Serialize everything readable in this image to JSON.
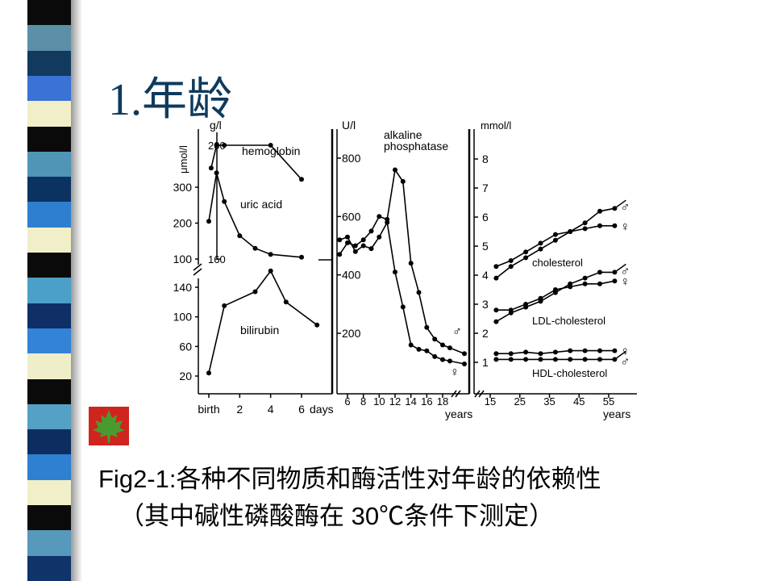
{
  "slide": {
    "title": "1.年龄",
    "caption_line1": "Fig2-1:各种不同物质和酶活性对年龄的依赖性",
    "caption_line2": "（其中碱性磷酸酶在 30℃条件下测定）",
    "decoration_icon": "maple-leaf-icon"
  },
  "colors": {
    "title": "#0f3a5c",
    "stripes": [
      "#0a0a0a",
      "#5b8fa8",
      "#113a5e",
      "#3a72d6",
      "#f1efc8",
      "#0a0a0a",
      "#4f95b6",
      "#0c3262",
      "#2f7fd0",
      "#f1efc8",
      "#0a0a0a",
      "#4aa0c8",
      "#102f66",
      "#3383d8",
      "#f0eec8",
      "#0a0a0a",
      "#55a0c6",
      "#0d2d60",
      "#2e80d0",
      "#f1efc8",
      "#0a0a0a",
      "#5699bb",
      "#10336a"
    ],
    "leaf_bg": "#d0241e",
    "leaf": "#4a9b2f"
  },
  "chart_data": [
    {
      "type": "line",
      "panel": "left",
      "x_ticks": [
        "birth",
        "2",
        "4",
        "6"
      ],
      "x_unit": "days",
      "left_axis_label": "μmol/l",
      "left_ticks_top": [
        "100",
        "200",
        "300"
      ],
      "left_ticks_bottom": [
        "20",
        "60",
        "100",
        "140"
      ],
      "right_axis_label": "g/l",
      "right_ticks": [
        "160",
        "200"
      ],
      "series": [
        {
          "name": "hemoglobin",
          "axis": "g/l",
          "x": [
            0.15,
            0.5,
            1,
            4,
            6
          ],
          "y": [
            192,
            200,
            200,
            200,
            188
          ]
        },
        {
          "name": "uric acid",
          "axis": "μmol/l",
          "x": [
            0,
            0.5,
            1,
            2,
            3,
            4,
            6
          ],
          "y": [
            205,
            340,
            260,
            165,
            130,
            113,
            105
          ]
        },
        {
          "name": "bilirubin",
          "axis": "μmol/l",
          "x": [
            0,
            1,
            3,
            4,
            5,
            7
          ],
          "y": [
            24,
            115,
            134,
            162,
            120,
            89
          ]
        }
      ]
    },
    {
      "type": "line",
      "panel": "middle",
      "axis_label": "U/l",
      "y_ticks": [
        "200",
        "400",
        "600",
        "800"
      ],
      "x_ticks": [
        "6",
        "8",
        "10",
        "12",
        "14",
        "16",
        "18"
      ],
      "x_unit": "years",
      "title": "alkaline phosphatase",
      "series": [
        {
          "name": "♂",
          "x": [
            5,
            6,
            7,
            8,
            9,
            10,
            11,
            12,
            13,
            14,
            15,
            16,
            17,
            18,
            19,
            21
          ],
          "y": [
            470,
            510,
            500,
            520,
            550,
            600,
            590,
            760,
            720,
            440,
            340,
            220,
            180,
            160,
            150,
            130
          ]
        },
        {
          "name": "♀",
          "x": [
            5,
            6,
            7,
            8,
            9,
            10,
            11,
            12,
            13,
            14,
            15,
            16,
            17,
            18,
            19,
            21
          ],
          "y": [
            520,
            530,
            480,
            500,
            490,
            530,
            580,
            410,
            290,
            160,
            145,
            140,
            120,
            110,
            105,
            95
          ]
        }
      ]
    },
    {
      "type": "line",
      "panel": "right",
      "axis_label": "mmol/l",
      "y_ticks": [
        "1",
        "2",
        "3",
        "4",
        "5",
        "6",
        "7",
        "8"
      ],
      "x_ticks": [
        "15",
        "25",
        "35",
        "45",
        "55"
      ],
      "x_unit": "years",
      "series": [
        {
          "name": "cholesterol ♂",
          "label": "cholesterol",
          "sex": "♂",
          "x": [
            17,
            22,
            27,
            32,
            37,
            42,
            47,
            52,
            57
          ],
          "y": [
            3.9,
            4.3,
            4.6,
            4.9,
            5.2,
            5.5,
            5.8,
            6.2,
            6.3
          ]
        },
        {
          "name": "cholesterol ♀",
          "sex": "♀",
          "x": [
            17,
            22,
            27,
            32,
            37,
            42,
            47,
            52,
            57
          ],
          "y": [
            4.3,
            4.5,
            4.8,
            5.1,
            5.4,
            5.5,
            5.6,
            5.7,
            5.7
          ]
        },
        {
          "name": "LDL-cholesterol ♂",
          "label": "LDL-cholesterol",
          "sex": "♂",
          "x": [
            17,
            22,
            27,
            32,
            37,
            42,
            47,
            52,
            57
          ],
          "y": [
            2.4,
            2.7,
            2.9,
            3.1,
            3.4,
            3.7,
            3.9,
            4.1,
            4.1
          ]
        },
        {
          "name": "LDL-cholesterol ♀",
          "sex": "♀",
          "x": [
            17,
            22,
            27,
            32,
            37,
            42,
            47,
            52,
            57
          ],
          "y": [
            2.8,
            2.8,
            3.0,
            3.2,
            3.5,
            3.6,
            3.7,
            3.7,
            3.8
          ]
        },
        {
          "name": "HDL-cholesterol ♂",
          "label": "HDL-cholesterol",
          "sex": "♂",
          "x": [
            17,
            22,
            27,
            32,
            37,
            42,
            47,
            52,
            57
          ],
          "y": [
            1.1,
            1.1,
            1.1,
            1.1,
            1.1,
            1.1,
            1.1,
            1.1,
            1.1
          ]
        },
        {
          "name": "HDL-cholesterol ♀",
          "sex": "♀",
          "x": [
            17,
            22,
            27,
            32,
            37,
            42,
            47,
            52,
            57
          ],
          "y": [
            1.3,
            1.3,
            1.35,
            1.3,
            1.35,
            1.4,
            1.4,
            1.4,
            1.4
          ]
        }
      ]
    }
  ]
}
